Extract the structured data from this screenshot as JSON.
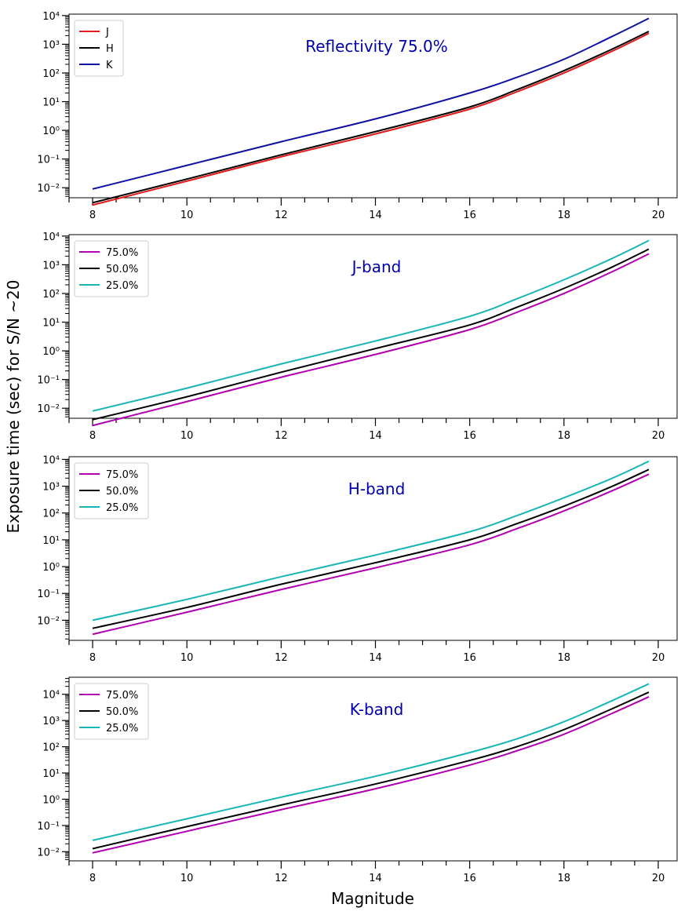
{
  "figure": {
    "ylabel": "Exposure time (sec) for S/N ~20",
    "xlabel": "Magnitude"
  },
  "chart_data": [
    {
      "type": "line",
      "annotation": "Reflectivity 75.0%",
      "annotation_color": "#0000aa",
      "xlim": [
        7.5,
        20.4
      ],
      "ylim_log10": [
        -2.35,
        4.05
      ],
      "log_y": true,
      "grid": false,
      "legend": "top-left",
      "x_ticks": [
        "8",
        "10",
        "12",
        "14",
        "16",
        "18",
        "20"
      ],
      "series": [
        {
          "name": "J",
          "color": "#e31a1c",
          "x": [
            8,
            10,
            12,
            14,
            16,
            17,
            18,
            19,
            19.8
          ],
          "y": [
            0.0025,
            0.017,
            0.12,
            0.75,
            5.5,
            22,
            100,
            550,
            2400
          ]
        },
        {
          "name": "H",
          "color": "#000000",
          "x": [
            8,
            10,
            12,
            14,
            16,
            17,
            18,
            19,
            19.8
          ],
          "y": [
            0.003,
            0.02,
            0.14,
            0.9,
            6.5,
            26,
            120,
            650,
            2800
          ]
        },
        {
          "name": "K",
          "color": "#1010a0",
          "x": [
            8,
            10,
            12,
            14,
            16,
            17,
            18,
            19,
            19.8
          ],
          "y": [
            0.009,
            0.06,
            0.4,
            2.5,
            20,
            70,
            300,
            1800,
            8000
          ]
        }
      ]
    },
    {
      "type": "line",
      "annotation": "J-band",
      "annotation_color": "#0000aa",
      "xlim": [
        7.5,
        20.4
      ],
      "ylim_log10": [
        -2.35,
        4.05
      ],
      "log_y": true,
      "grid": false,
      "legend": "top-left",
      "x_ticks": [
        "8",
        "10",
        "12",
        "14",
        "16",
        "18",
        "20"
      ],
      "series": [
        {
          "name": "75.0%",
          "color": "#b000b0",
          "x": [
            8,
            10,
            12,
            14,
            16,
            17,
            18,
            19,
            19.8
          ],
          "y": [
            0.0025,
            0.017,
            0.12,
            0.75,
            5.5,
            22,
            100,
            550,
            2400
          ]
        },
        {
          "name": "50.0%",
          "color": "#000000",
          "x": [
            8,
            10,
            12,
            14,
            16,
            17,
            18,
            19,
            19.8
          ],
          "y": [
            0.004,
            0.025,
            0.18,
            1.2,
            8,
            33,
            150,
            800,
            3500
          ]
        },
        {
          "name": "25.0%",
          "color": "#17b5b5",
          "x": [
            8,
            10,
            12,
            14,
            16,
            17,
            18,
            19,
            19.8
          ],
          "y": [
            0.008,
            0.05,
            0.35,
            2.2,
            16,
            65,
            300,
            1600,
            7000
          ]
        }
      ]
    },
    {
      "type": "line",
      "annotation": "H-band",
      "annotation_color": "#0000aa",
      "xlim": [
        7.5,
        20.4
      ],
      "ylim_log10": [
        -2.75,
        4.1
      ],
      "log_y": true,
      "grid": false,
      "legend": "top-left",
      "x_ticks": [
        "8",
        "10",
        "12",
        "14",
        "16",
        "18",
        "20"
      ],
      "series": [
        {
          "name": "75.0%",
          "color": "#b000b0",
          "x": [
            8,
            10,
            12,
            14,
            16,
            17,
            18,
            19,
            19.8
          ],
          "y": [
            0.003,
            0.02,
            0.14,
            0.9,
            6.5,
            26,
            120,
            650,
            2800
          ]
        },
        {
          "name": "50.0%",
          "color": "#000000",
          "x": [
            8,
            10,
            12,
            14,
            16,
            17,
            18,
            19,
            19.8
          ],
          "y": [
            0.005,
            0.03,
            0.22,
            1.4,
            10,
            40,
            180,
            950,
            4200
          ]
        },
        {
          "name": "25.0%",
          "color": "#17b5b5",
          "x": [
            8,
            10,
            12,
            14,
            16,
            17,
            18,
            19,
            19.8
          ],
          "y": [
            0.01,
            0.06,
            0.42,
            2.7,
            20,
            80,
            370,
            1900,
            8500
          ]
        }
      ]
    },
    {
      "type": "line",
      "annotation": "K-band",
      "annotation_color": "#0000aa",
      "xlim": [
        7.5,
        20.4
      ],
      "ylim_log10": [
        -2.35,
        4.65
      ],
      "log_y": true,
      "grid": false,
      "legend": "top-left",
      "x_ticks": [
        "8",
        "10",
        "12",
        "14",
        "16",
        "18",
        "20"
      ],
      "series": [
        {
          "name": "75.0%",
          "color": "#b000b0",
          "x": [
            8,
            10,
            12,
            14,
            16,
            17,
            18,
            19,
            19.8
          ],
          "y": [
            0.009,
            0.06,
            0.4,
            2.5,
            20,
            70,
            300,
            1800,
            8000
          ]
        },
        {
          "name": "50.0%",
          "color": "#000000",
          "x": [
            8,
            10,
            12,
            14,
            16,
            17,
            18,
            19,
            19.8
          ],
          "y": [
            0.013,
            0.09,
            0.6,
            3.8,
            30,
            100,
            450,
            2700,
            12000
          ]
        },
        {
          "name": "25.0%",
          "color": "#17b5b5",
          "x": [
            8,
            10,
            12,
            14,
            16,
            17,
            18,
            19,
            19.8
          ],
          "y": [
            0.027,
            0.18,
            1.2,
            7.5,
            60,
            200,
            900,
            5500,
            25000
          ]
        }
      ]
    }
  ]
}
